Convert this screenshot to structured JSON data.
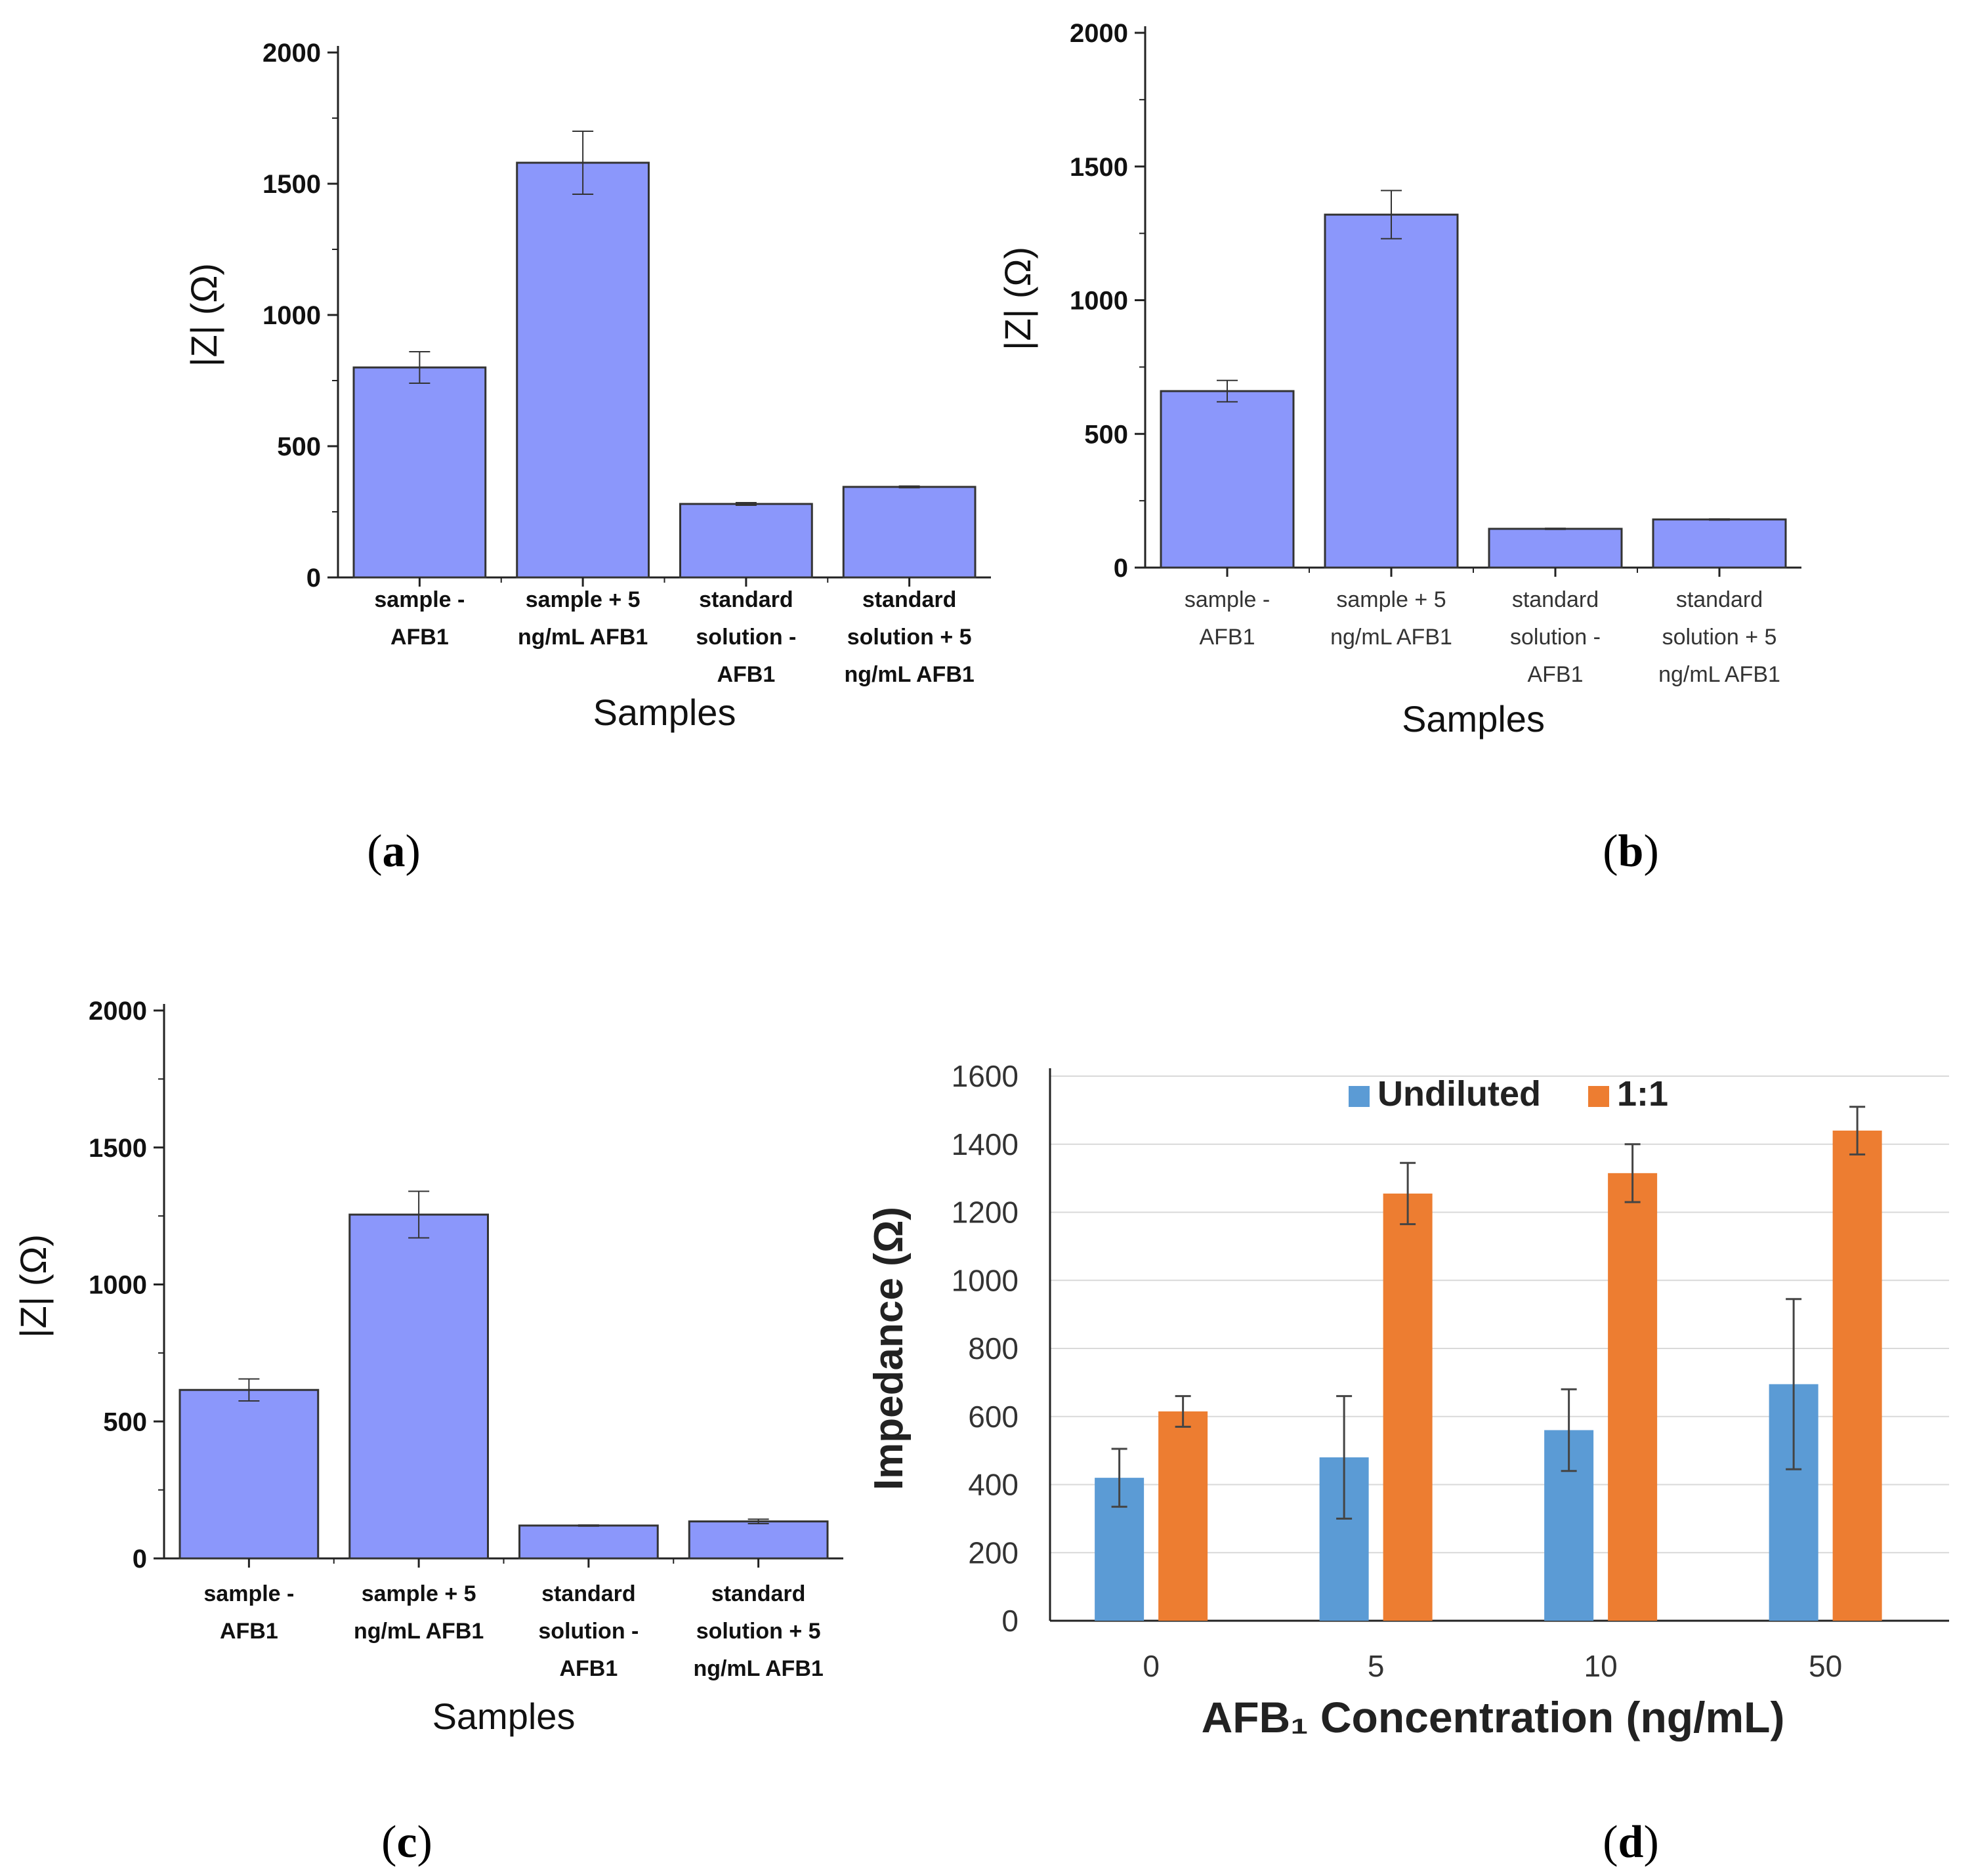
{
  "chart_data": [
    {
      "panel": "a",
      "type": "bar",
      "categories": [
        [
          "sample -",
          "AFB1"
        ],
        [
          "sample + 5",
          "ng/mL AFB1"
        ],
        [
          "standard",
          "solution -",
          "AFB1"
        ],
        [
          "standard",
          "solution + 5",
          "ng/mL AFB1"
        ]
      ],
      "values": [
        800,
        1580,
        280,
        345
      ],
      "errors": [
        60,
        120,
        5,
        3
      ],
      "ylim": [
        0,
        2000
      ],
      "yticks": [
        0,
        500,
        1000,
        1500,
        2000
      ],
      "ylabel": "|Z| (Ω)",
      "xlabel": "Samples",
      "color": "#8b97fb"
    },
    {
      "panel": "b",
      "type": "bar",
      "categories": [
        [
          "sample -",
          "AFB1"
        ],
        [
          "sample + 5",
          "ng/mL AFB1"
        ],
        [
          "standard",
          "solution -",
          "AFB1"
        ],
        [
          "standard",
          "solution + 5",
          "ng/mL AFB1"
        ]
      ],
      "values": [
        660,
        1320,
        145,
        180
      ],
      "errors": [
        40,
        90,
        2,
        2
      ],
      "ylim": [
        0,
        2000
      ],
      "yticks": [
        0,
        500,
        1000,
        1500,
        2000
      ],
      "ylabel": "|Z| (Ω)",
      "xlabel": "Samples",
      "color": "#8b97fb"
    },
    {
      "panel": "c",
      "type": "bar",
      "categories": [
        [
          "sample -",
          "AFB1"
        ],
        [
          "sample + 5",
          "ng/mL AFB1"
        ],
        [
          "standard",
          "solution -",
          "AFB1"
        ],
        [
          "standard",
          "solution + 5",
          "ng/mL AFB1"
        ]
      ],
      "values": [
        615,
        1255,
        120,
        135
      ],
      "errors": [
        40,
        85,
        2,
        8
      ],
      "ylim": [
        0,
        2000
      ],
      "yticks": [
        0,
        500,
        1000,
        1500,
        2000
      ],
      "ylabel": "|Z| (Ω)",
      "xlabel": "Samples",
      "color": "#8b97fb"
    },
    {
      "panel": "d",
      "type": "bar",
      "categories": [
        "0",
        "5",
        "10",
        "50"
      ],
      "series": [
        {
          "name": "Undiluted",
          "values": [
            420,
            480,
            560,
            695
          ],
          "errors": [
            85,
            180,
            120,
            250
          ],
          "color": "#5b9bd5"
        },
        {
          "name": "1:1",
          "values": [
            615,
            1255,
            1315,
            1440
          ],
          "errors": [
            45,
            90,
            85,
            70
          ],
          "color": "#ed7d31"
        }
      ],
      "ylim": [
        0,
        1600
      ],
      "yticks": [
        0,
        200,
        400,
        600,
        800,
        1000,
        1200,
        1400,
        1600
      ],
      "ylabel": "Impedance (Ω)",
      "xlabel": "AFB₁ Concentration (ng/mL)",
      "legend": "top"
    }
  ],
  "panel_labels": {
    "a": {
      "open": "(",
      "letter": "a",
      "close": ")"
    },
    "b": {
      "open": "(",
      "letter": "b",
      "close": ")"
    },
    "c": {
      "open": "(",
      "letter": "c",
      "close": ")"
    },
    "d": {
      "open": "(",
      "letter": "d",
      "close": ")"
    }
  }
}
